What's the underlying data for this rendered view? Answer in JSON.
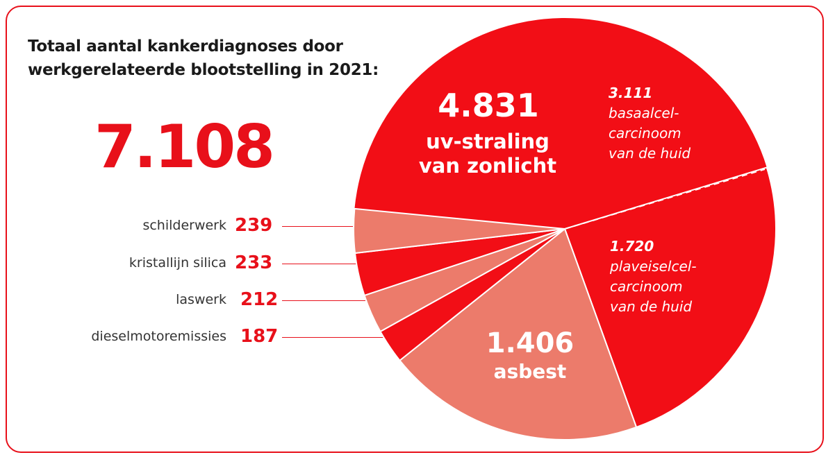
{
  "title_line1": "Totaal aantal kankerdiagnoses door",
  "title_line2": "werkgerelateerde blootstelling in 2021:",
  "total": "7.108",
  "colors": {
    "frame": "#e8101a",
    "dark": "#f20e16",
    "light": "#ec7b6b",
    "white": "#ffffff"
  },
  "labels": {
    "uv_value": "4.831",
    "uv_line1": "uv-straling",
    "uv_line2": "van zonlicht",
    "bcc_value": "3.111",
    "bcc_line1": "basaalcel-",
    "bcc_line2": "carcinoom",
    "bcc_line3": "van de huid",
    "scc_value": "1.720",
    "scc_line1": "plaveiselcel-",
    "scc_line2": "carcinoom",
    "scc_line3": "van de huid",
    "asbest_value": "1.406",
    "asbest_label": "asbest"
  },
  "small": [
    {
      "label": "schilderwerk",
      "value": "239"
    },
    {
      "label": "kristallijn silica",
      "value": "233"
    },
    {
      "label": "laswerk",
      "value": "212"
    },
    {
      "label": "dieselmotoremissies",
      "value": "187"
    }
  ],
  "chart_data": {
    "type": "pie",
    "title": "Totaal aantal kankerdiagnoses door werkgerelateerde blootstelling in 2021:",
    "total": 7108,
    "slices": [
      {
        "name": "uv-straling van zonlicht: basaalcelcarcinoom van de huid",
        "value": 3111,
        "color": "#f20e16"
      },
      {
        "name": "uv-straling van zonlicht: plaveiselcelcarcinoom van de huid",
        "value": 1720,
        "color": "#f20e16"
      },
      {
        "name": "asbest",
        "value": 1406,
        "color": "#ec7b6b"
      },
      {
        "name": "dieselmotoremissies",
        "value": 187,
        "color": "#f20e16"
      },
      {
        "name": "laswerk",
        "value": 212,
        "color": "#ec7b6b"
      },
      {
        "name": "kristallijn silica",
        "value": 233,
        "color": "#f20e16"
      },
      {
        "name": "schilderwerk",
        "value": 239,
        "color": "#ec7b6b"
      }
    ]
  }
}
